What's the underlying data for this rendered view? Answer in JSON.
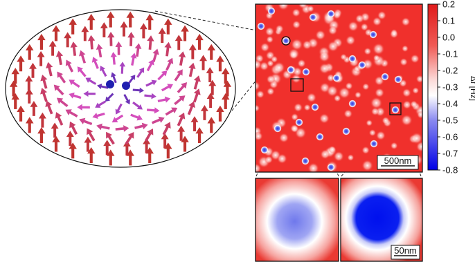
{
  "colorbar": {
    "quantity_label": "Δf [Hz]",
    "ticks": [
      "0.2",
      "0.1",
      "0.0",
      "-0.1",
      "-0.2",
      "-0.3",
      "-0.4",
      "-0.5",
      "-0.6",
      "-0.7",
      "-0.8"
    ],
    "color_top": "#e8191b",
    "color_mid": "#ffffff",
    "color_bottom": "#0000e6"
  },
  "main_image": {
    "scale_bar_label": "500nm"
  },
  "zoom_right": {
    "scale_bar_label": "50nm"
  },
  "colors": {
    "map_red": "#f0302c",
    "skyrmion_blue": "#1a2bd8",
    "arrow_outer": "#c0392b",
    "arrow_mid": "#d64fc8",
    "arrow_core": "#1f1fb0"
  },
  "icons": [
    "skyrmion-spin-texture-icon",
    "arrow-icon"
  ]
}
